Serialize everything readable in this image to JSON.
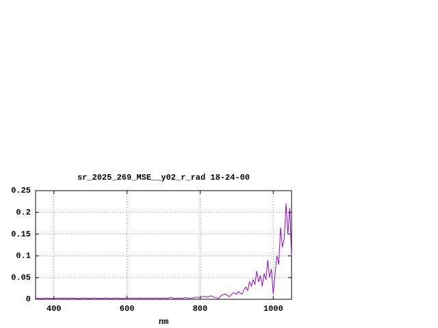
{
  "chart_data": {
    "type": "line",
    "title": "sr_2025_269_MSE__y02_r_rad 18-24-00",
    "xlabel": "nm",
    "x": [
      350,
      360,
      370,
      380,
      390,
      400,
      410,
      420,
      430,
      440,
      450,
      460,
      470,
      480,
      490,
      500,
      510,
      520,
      530,
      540,
      550,
      560,
      570,
      580,
      590,
      600,
      610,
      620,
      630,
      640,
      650,
      660,
      670,
      680,
      690,
      700,
      710,
      720,
      730,
      740,
      750,
      760,
      770,
      780,
      790,
      800,
      810,
      820,
      830,
      840,
      850,
      860,
      870,
      880,
      890,
      900,
      905,
      910,
      915,
      920,
      925,
      930,
      935,
      940,
      945,
      950,
      955,
      960,
      965,
      970,
      975,
      980,
      985,
      990,
      995,
      1000,
      1005,
      1010,
      1015,
      1020,
      1025,
      1030,
      1035,
      1040,
      1045,
      1050
    ],
    "series": [
      {
        "color": "#9400d3",
        "values": [
          0.003,
          0.002,
          0.002,
          0.003,
          0.002,
          0.002,
          0.003,
          0.002,
          0.003,
          0.002,
          0.003,
          0.002,
          0.002,
          0.003,
          0.002,
          0.002,
          0.003,
          0.002,
          0.002,
          0.003,
          0.002,
          0.002,
          0.003,
          0.002,
          0.002,
          0.003,
          0.002,
          0.003,
          0.002,
          0.003,
          0.002,
          0.003,
          0.002,
          0.003,
          0.002,
          0.003,
          0.002,
          0.004,
          0.002,
          0.003,
          0.002,
          0.004,
          0.002,
          0.003,
          0.005,
          0.004,
          0.007,
          0.005,
          0.008,
          0.004,
          0.002,
          0.01,
          0.012,
          0.006,
          0.015,
          0.012,
          0.018,
          0.014,
          0.012,
          0.022,
          0.028,
          0.02,
          0.04,
          0.03,
          0.045,
          0.035,
          0.065,
          0.04,
          0.055,
          0.03,
          0.06,
          0.045,
          0.09,
          0.05,
          0.07,
          0.012,
          0.06,
          0.1,
          0.08,
          0.165,
          0.12,
          0.14,
          0.22,
          0.15,
          0.21,
          0.1
        ]
      }
    ],
    "xlim": [
      350,
      1050
    ],
    "ylim": [
      0,
      0.25
    ],
    "xticks": [
      400,
      600,
      800,
      1000
    ],
    "yticks": [
      0,
      0.05,
      0.1,
      0.15,
      0.2,
      0.25
    ],
    "grid": true
  }
}
